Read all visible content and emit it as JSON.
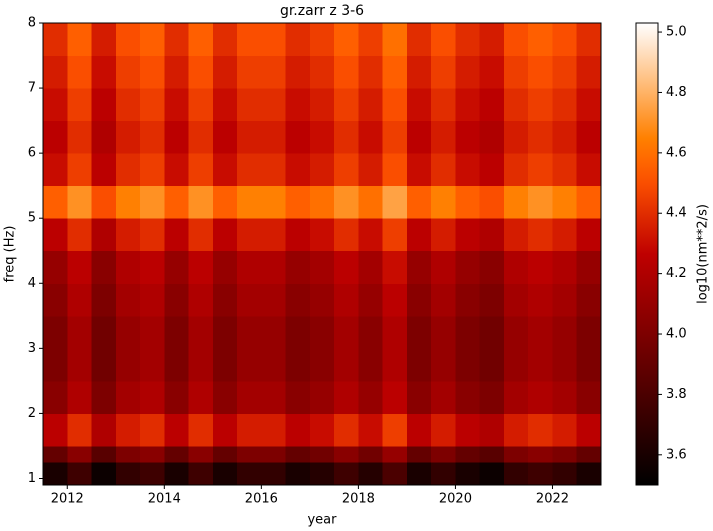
{
  "chart_data": {
    "type": "heatmap",
    "title": "gr.zarr z 3-6",
    "xlabel": "year",
    "ylabel": "freq (Hz)",
    "colorbar_label": "log10(nm**2/s)",
    "xlim": [
      2011.5,
      2023
    ],
    "ylim": [
      0.9,
      8
    ],
    "xticks": [
      2012,
      2014,
      2016,
      2018,
      2020,
      2022
    ],
    "yticks": [
      1,
      2,
      3,
      4,
      5,
      6,
      7,
      8
    ],
    "clim": [
      3.5,
      5.03
    ],
    "cticks": [
      3.6,
      3.8,
      {
        "value": 4,
        "label": "4.0"
      },
      4.2,
      4.4,
      4.6,
      4.8,
      {
        "value": 5,
        "label": "5.0"
      }
    ],
    "colormap": "gist_heat",
    "x_edges": [
      2011.5,
      2012,
      2012.5,
      2013,
      2013.5,
      2014,
      2014.5,
      2015,
      2015.5,
      2016,
      2016.5,
      2017,
      2017.5,
      2018,
      2018.5,
      2019,
      2019.5,
      2020,
      2020.5,
      2021,
      2021.5,
      2022,
      2022.5,
      2023
    ],
    "y_edges": [
      0.9,
      1.25,
      1.5,
      2,
      2.5,
      3,
      3.5,
      4,
      4.5,
      5,
      5.5,
      6,
      6.5,
      7,
      7.5,
      8
    ],
    "z": [
      [
        3.6,
        3.75,
        3.55,
        3.7,
        3.75,
        3.6,
        3.75,
        3.6,
        3.7,
        3.7,
        3.6,
        3.65,
        3.75,
        3.65,
        3.8,
        3.6,
        3.7,
        3.6,
        3.55,
        3.7,
        3.75,
        3.7,
        3.6
      ],
      [
        3.9,
        4.05,
        3.85,
        4.0,
        4.05,
        3.9,
        4.05,
        3.9,
        4.0,
        4.0,
        3.9,
        3.95,
        4.05,
        3.95,
        4.1,
        3.9,
        4.0,
        3.9,
        3.85,
        4.0,
        4.05,
        4.0,
        3.9
      ],
      [
        4.25,
        4.4,
        4.2,
        4.35,
        4.4,
        4.25,
        4.4,
        4.25,
        4.35,
        4.35,
        4.25,
        4.3,
        4.4,
        4.3,
        4.45,
        4.25,
        4.35,
        4.25,
        4.2,
        4.35,
        4.4,
        4.35,
        4.25
      ],
      [
        4.05,
        4.2,
        4.0,
        4.15,
        4.2,
        4.05,
        4.2,
        4.05,
        4.15,
        4.15,
        4.05,
        4.1,
        4.2,
        4.1,
        4.25,
        4.05,
        4.15,
        4.05,
        4.0,
        4.15,
        4.2,
        4.15,
        4.05
      ],
      [
        4.0,
        4.15,
        3.95,
        4.1,
        4.15,
        4.0,
        4.15,
        4.0,
        4.1,
        4.1,
        4.0,
        4.05,
        4.15,
        4.05,
        4.2,
        4.0,
        4.1,
        4.0,
        3.95,
        4.1,
        4.15,
        4.1,
        4.0
      ],
      [
        4.0,
        4.15,
        3.95,
        4.1,
        4.15,
        4.0,
        4.15,
        4.0,
        4.1,
        4.1,
        4.0,
        4.05,
        4.15,
        4.05,
        4.2,
        4.0,
        4.1,
        4.0,
        3.95,
        4.1,
        4.15,
        4.1,
        4.0
      ],
      [
        4.05,
        4.2,
        4.0,
        4.15,
        4.2,
        4.05,
        4.2,
        4.05,
        4.15,
        4.15,
        4.05,
        4.1,
        4.2,
        4.1,
        4.25,
        4.05,
        4.15,
        4.05,
        4.0,
        4.15,
        4.2,
        4.15,
        4.05
      ],
      [
        4.1,
        4.25,
        4.05,
        4.2,
        4.25,
        4.1,
        4.25,
        4.1,
        4.2,
        4.2,
        4.1,
        4.15,
        4.25,
        4.15,
        4.3,
        4.1,
        4.2,
        4.1,
        4.05,
        4.2,
        4.25,
        4.2,
        4.1
      ],
      [
        4.25,
        4.4,
        4.2,
        4.35,
        4.4,
        4.25,
        4.4,
        4.25,
        4.35,
        4.35,
        4.25,
        4.3,
        4.4,
        4.3,
        4.45,
        4.25,
        4.35,
        4.25,
        4.2,
        4.35,
        4.4,
        4.35,
        4.25
      ],
      [
        4.55,
        4.7,
        4.5,
        4.65,
        4.7,
        4.55,
        4.7,
        4.55,
        4.65,
        4.65,
        4.55,
        4.6,
        4.7,
        4.6,
        4.75,
        4.55,
        4.65,
        4.55,
        4.5,
        4.65,
        4.7,
        4.65,
        4.55
      ],
      [
        4.3,
        4.45,
        4.25,
        4.4,
        4.45,
        4.3,
        4.45,
        4.3,
        4.4,
        4.4,
        4.3,
        4.35,
        4.45,
        4.35,
        4.5,
        4.3,
        4.4,
        4.3,
        4.25,
        4.4,
        4.45,
        4.4,
        4.3
      ],
      [
        4.25,
        4.4,
        4.2,
        4.35,
        4.4,
        4.25,
        4.4,
        4.25,
        4.35,
        4.35,
        4.25,
        4.3,
        4.4,
        4.3,
        4.45,
        4.25,
        4.35,
        4.25,
        4.2,
        4.35,
        4.4,
        4.35,
        4.25
      ],
      [
        4.3,
        4.45,
        4.25,
        4.4,
        4.45,
        4.3,
        4.45,
        4.3,
        4.4,
        4.4,
        4.3,
        4.35,
        4.45,
        4.35,
        4.5,
        4.3,
        4.4,
        4.3,
        4.25,
        4.4,
        4.45,
        4.4,
        4.3
      ],
      [
        4.35,
        4.5,
        4.3,
        4.45,
        4.5,
        4.35,
        4.5,
        4.35,
        4.45,
        4.45,
        4.35,
        4.4,
        4.5,
        4.4,
        4.55,
        4.35,
        4.45,
        4.35,
        4.3,
        4.45,
        4.5,
        4.45,
        4.35
      ],
      [
        4.4,
        4.55,
        4.35,
        4.5,
        4.55,
        4.4,
        4.55,
        4.4,
        4.5,
        4.5,
        4.4,
        4.45,
        4.55,
        4.45,
        4.6,
        4.4,
        4.5,
        4.4,
        4.35,
        4.5,
        4.55,
        4.5,
        4.4
      ]
    ]
  }
}
